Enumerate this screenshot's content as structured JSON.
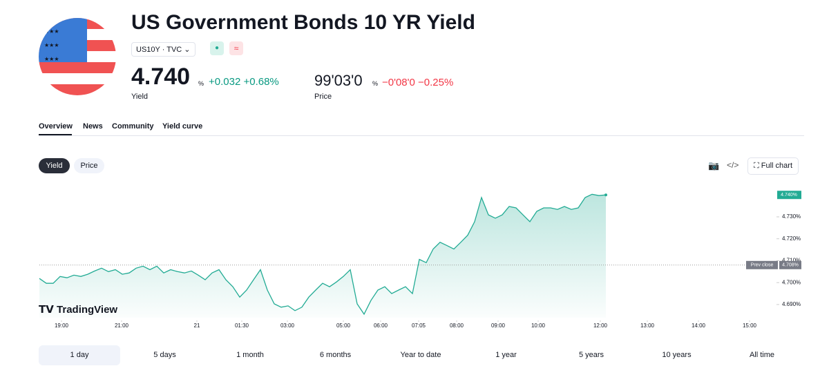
{
  "header": {
    "title": "US Government Bonds 10 YR Yield",
    "symbol": "US10Y",
    "exchange": "TVC",
    "yield": {
      "value": "4.740",
      "unit": "%",
      "change": "+0.032",
      "change_pct": "+0.68%",
      "label": "Yield"
    },
    "price": {
      "value": "99'03'0",
      "unit": "%",
      "change": "−0'08'0",
      "change_pct": "−0.25%",
      "label": "Price"
    }
  },
  "tabs": [
    "Overview",
    "News",
    "Community",
    "Yield curve"
  ],
  "toggle": [
    "Yield",
    "Price"
  ],
  "full_chart": "Full chart",
  "watermark": "TradingView",
  "ranges": [
    "1 day",
    "5 days",
    "1 month",
    "6 months",
    "Year to date",
    "1 year",
    "5 years",
    "10 years",
    "All time"
  ],
  "chart_data": {
    "type": "line",
    "color": "#22ab94",
    "x": [
      0,
      1,
      2,
      3,
      4,
      5,
      6,
      7,
      8,
      9,
      10,
      11,
      12,
      13,
      14,
      15,
      16,
      17,
      18,
      19,
      20,
      21,
      22,
      23,
      24,
      25,
      26,
      27,
      28,
      29,
      30,
      31,
      32,
      33,
      34,
      35,
      36,
      37,
      38,
      39,
      40,
      41,
      42,
      43,
      44,
      45,
      46,
      47,
      48,
      49,
      50,
      51,
      52,
      53,
      54,
      55,
      56,
      57,
      58,
      59,
      60,
      61,
      62,
      63,
      64,
      65,
      66,
      67,
      68,
      69,
      70,
      71,
      72,
      73,
      74,
      75,
      76,
      77,
      78,
      79,
      80,
      81,
      82
    ],
    "values": [
      4.7019,
      4.6997,
      4.6997,
      4.7028,
      4.7022,
      4.7034,
      4.7028,
      4.7038,
      4.7053,
      4.7066,
      4.705,
      4.7059,
      4.7038,
      4.7044,
      4.7066,
      4.7075,
      4.7059,
      4.7075,
      4.7044,
      4.7059,
      4.705,
      4.7044,
      4.7053,
      4.7034,
      4.7013,
      4.7044,
      4.7059,
      4.7013,
      4.6981,
      4.6934,
      4.6966,
      4.7013,
      4.7059,
      4.6966,
      4.6903,
      4.6888,
      4.6894,
      4.6872,
      4.6888,
      4.6934,
      4.6966,
      4.6997,
      4.6981,
      4.7003,
      4.7028,
      4.7059,
      4.6903,
      4.6856,
      4.6919,
      4.6966,
      4.6981,
      4.695,
      4.6966,
      4.6981,
      4.695,
      4.7106,
      4.7091,
      4.7153,
      4.7184,
      4.7169,
      4.7153,
      4.7184,
      4.7216,
      4.7278,
      4.7388,
      4.7309,
      4.7294,
      4.7309,
      4.7347,
      4.7341,
      4.7309,
      4.7278,
      4.7325,
      4.7341,
      4.7341,
      4.7334,
      4.7347,
      4.7334,
      4.7341,
      4.7388,
      4.7403,
      4.7397,
      4.74
    ],
    "last_label": "4.740%",
    "prev_close": {
      "label": "Prev close",
      "value": 4.708,
      "value_label": "4.708%"
    },
    "xlim": [
      0,
      105.3
    ],
    "xticks": [
      {
        "value": 3.2,
        "label": "19:00"
      },
      {
        "value": 11.9,
        "label": "21:00"
      },
      {
        "value": 22.8,
        "label": "21"
      },
      {
        "value": 29.3,
        "label": "01:30"
      },
      {
        "value": 35.9,
        "label": "03:00"
      },
      {
        "value": 44,
        "label": "05:00"
      },
      {
        "value": 49.4,
        "label": "06:00"
      },
      {
        "value": 54.9,
        "label": "07:05"
      },
      {
        "value": 60.4,
        "label": "08:00"
      },
      {
        "value": 66.4,
        "label": "09:00"
      },
      {
        "value": 72.2,
        "label": "10:00"
      },
      {
        "value": 81.2,
        "label": "12:00"
      },
      {
        "value": 88,
        "label": "13:00"
      },
      {
        "value": 95.4,
        "label": "14:00"
      },
      {
        "value": 102.8,
        "label": "15:00"
      }
    ],
    "ylim": [
      4.684,
      4.747
    ],
    "yticks": [
      {
        "value": 4.69,
        "label": "4.690%"
      },
      {
        "value": 4.7,
        "label": "4.700%"
      },
      {
        "value": 4.71,
        "label": "4.710%"
      },
      {
        "value": 4.72,
        "label": "4.720%"
      },
      {
        "value": 4.73,
        "label": "4.730%"
      }
    ]
  }
}
